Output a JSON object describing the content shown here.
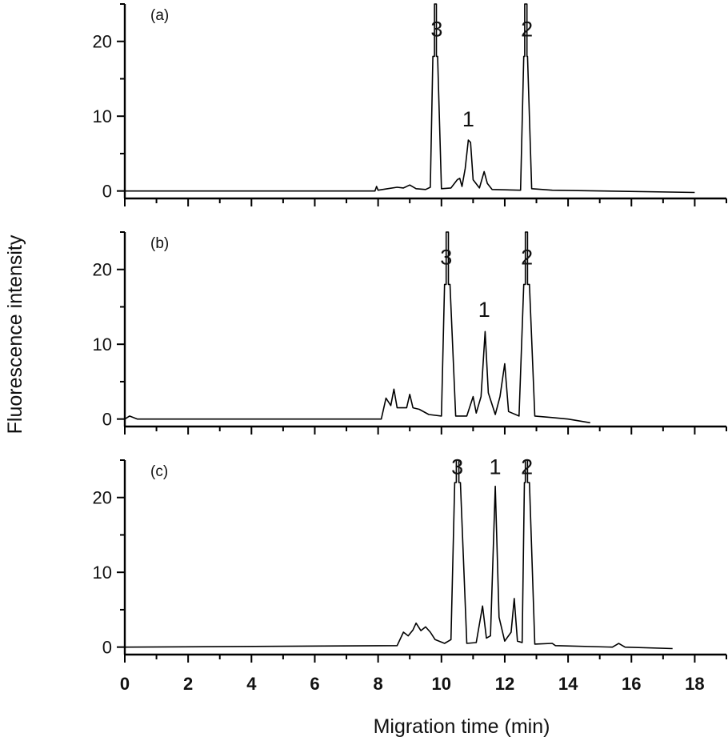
{
  "chart_data": {
    "type": "line",
    "ylabel": "Fluorescence intensity",
    "xlabel": "Migration time (min)",
    "xlim": [
      0,
      19
    ],
    "x_ticks": [
      0,
      2,
      4,
      6,
      8,
      10,
      12,
      14,
      16,
      18
    ],
    "grid": false,
    "panels": [
      {
        "label": "(a)",
        "ylim": [
          -1,
          25
        ],
        "y_ticks": [
          0,
          10,
          20
        ],
        "series": [
          {
            "points": [
              [
                0,
                0
              ],
              [
                7.9,
                0
              ],
              [
                7.95,
                0.6
              ],
              [
                8.0,
                0.1
              ],
              [
                8.3,
                0.3
              ],
              [
                8.6,
                0.5
              ],
              [
                8.8,
                0.4
              ],
              [
                9.0,
                0.8
              ],
              [
                9.2,
                0.3
              ],
              [
                9.5,
                0.2
              ],
              [
                9.65,
                0.5
              ],
              [
                9.73,
                18
              ],
              [
                9.78,
                18
              ],
              [
                9.78,
                25
              ],
              [
                9.84,
                25
              ],
              [
                9.84,
                18
              ],
              [
                9.88,
                18
              ],
              [
                10.0,
                0.3
              ],
              [
                10.3,
                0.4
              ],
              [
                10.5,
                1.5
              ],
              [
                10.58,
                1.7
              ],
              [
                10.65,
                0.6
              ],
              [
                10.75,
                3.0
              ],
              [
                10.85,
                6.8
              ],
              [
                10.92,
                6.5
              ],
              [
                11.0,
                1.5
              ],
              [
                11.2,
                0.4
              ],
              [
                11.35,
                2.6
              ],
              [
                11.45,
                1.0
              ],
              [
                11.6,
                0.2
              ],
              [
                12.5,
                0.1
              ],
              [
                12.6,
                18
              ],
              [
                12.63,
                18
              ],
              [
                12.63,
                25
              ],
              [
                12.7,
                25
              ],
              [
                12.7,
                18
              ],
              [
                12.72,
                18
              ],
              [
                12.85,
                0.3
              ],
              [
                13.5,
                0.1
              ],
              [
                18.0,
                -0.2
              ]
            ]
          }
        ],
        "peaks": [
          {
            "label": "3",
            "x": 9.85,
            "y": 20
          },
          {
            "label": "1",
            "x": 10.85,
            "y": 8
          },
          {
            "label": "2",
            "x": 12.7,
            "y": 20
          }
        ]
      },
      {
        "label": "(b)",
        "ylim": [
          -1,
          25
        ],
        "y_ticks": [
          0,
          10,
          20
        ],
        "series": [
          {
            "points": [
              [
                0,
                0
              ],
              [
                0.15,
                0.4
              ],
              [
                0.4,
                0
              ],
              [
                8.1,
                0
              ],
              [
                8.25,
                2.8
              ],
              [
                8.4,
                1.8
              ],
              [
                8.5,
                4.0
              ],
              [
                8.6,
                1.5
              ],
              [
                8.9,
                1.5
              ],
              [
                9.0,
                3.3
              ],
              [
                9.1,
                1.5
              ],
              [
                9.3,
                1.3
              ],
              [
                9.6,
                0.6
              ],
              [
                10.0,
                0.4
              ],
              [
                10.1,
                18
              ],
              [
                10.15,
                18
              ],
              [
                10.15,
                25
              ],
              [
                10.22,
                25
              ],
              [
                10.22,
                18
              ],
              [
                10.27,
                18
              ],
              [
                10.45,
                0.4
              ],
              [
                10.8,
                0.4
              ],
              [
                11.0,
                3.0
              ],
              [
                11.1,
                0.8
              ],
              [
                11.25,
                3.0
              ],
              [
                11.38,
                11.7
              ],
              [
                11.48,
                3.5
              ],
              [
                11.7,
                0.6
              ],
              [
                11.85,
                3.0
              ],
              [
                12.0,
                7.4
              ],
              [
                12.12,
                1.0
              ],
              [
                12.45,
                0.4
              ],
              [
                12.6,
                18
              ],
              [
                12.65,
                18
              ],
              [
                12.65,
                25
              ],
              [
                12.72,
                25
              ],
              [
                12.72,
                18
              ],
              [
                12.78,
                18
              ],
              [
                12.95,
                0.4
              ],
              [
                13.5,
                0.2
              ],
              [
                14.0,
                0
              ],
              [
                14.7,
                -0.5
              ]
            ]
          }
        ],
        "peaks": [
          {
            "label": "3",
            "x": 10.15,
            "y": 20
          },
          {
            "label": "1",
            "x": 11.35,
            "y": 13
          },
          {
            "label": "2",
            "x": 12.7,
            "y": 20
          }
        ]
      },
      {
        "label": "(c)",
        "ylim": [
          -1,
          25
        ],
        "y_ticks": [
          0,
          10,
          20
        ],
        "series": [
          {
            "points": [
              [
                0,
                0
              ],
              [
                8.6,
                0.2
              ],
              [
                8.8,
                2.0
              ],
              [
                8.95,
                1.5
              ],
              [
                9.1,
                2.3
              ],
              [
                9.2,
                3.2
              ],
              [
                9.35,
                2.2
              ],
              [
                9.5,
                2.7
              ],
              [
                9.65,
                2.0
              ],
              [
                9.8,
                1.0
              ],
              [
                10.1,
                0.5
              ],
              [
                10.3,
                1.0
              ],
              [
                10.42,
                22
              ],
              [
                10.47,
                22
              ],
              [
                10.47,
                25
              ],
              [
                10.55,
                25
              ],
              [
                10.55,
                22
              ],
              [
                10.6,
                22
              ],
              [
                10.8,
                0.5
              ],
              [
                11.1,
                0.6
              ],
              [
                11.3,
                5.5
              ],
              [
                11.42,
                1.2
              ],
              [
                11.55,
                1.5
              ],
              [
                11.7,
                21.5
              ],
              [
                11.82,
                4.0
              ],
              [
                12.0,
                0.8
              ],
              [
                12.2,
                2.0
              ],
              [
                12.3,
                6.5
              ],
              [
                12.4,
                0.8
              ],
              [
                12.55,
                0.6
              ],
              [
                12.62,
                22
              ],
              [
                12.65,
                22
              ],
              [
                12.65,
                25
              ],
              [
                12.72,
                25
              ],
              [
                12.72,
                22
              ],
              [
                12.78,
                22
              ],
              [
                12.95,
                0.4
              ],
              [
                13.5,
                0.5
              ],
              [
                13.6,
                0.2
              ],
              [
                15.4,
                0
              ],
              [
                15.6,
                0.5
              ],
              [
                15.8,
                0
              ],
              [
                17.3,
                -0.2
              ]
            ]
          }
        ],
        "peaks": [
          {
            "label": "3",
            "x": 10.5,
            "y": 22.5
          },
          {
            "label": "1",
            "x": 11.7,
            "y": 22.5
          },
          {
            "label": "2",
            "x": 12.7,
            "y": 22.5
          }
        ]
      }
    ]
  }
}
